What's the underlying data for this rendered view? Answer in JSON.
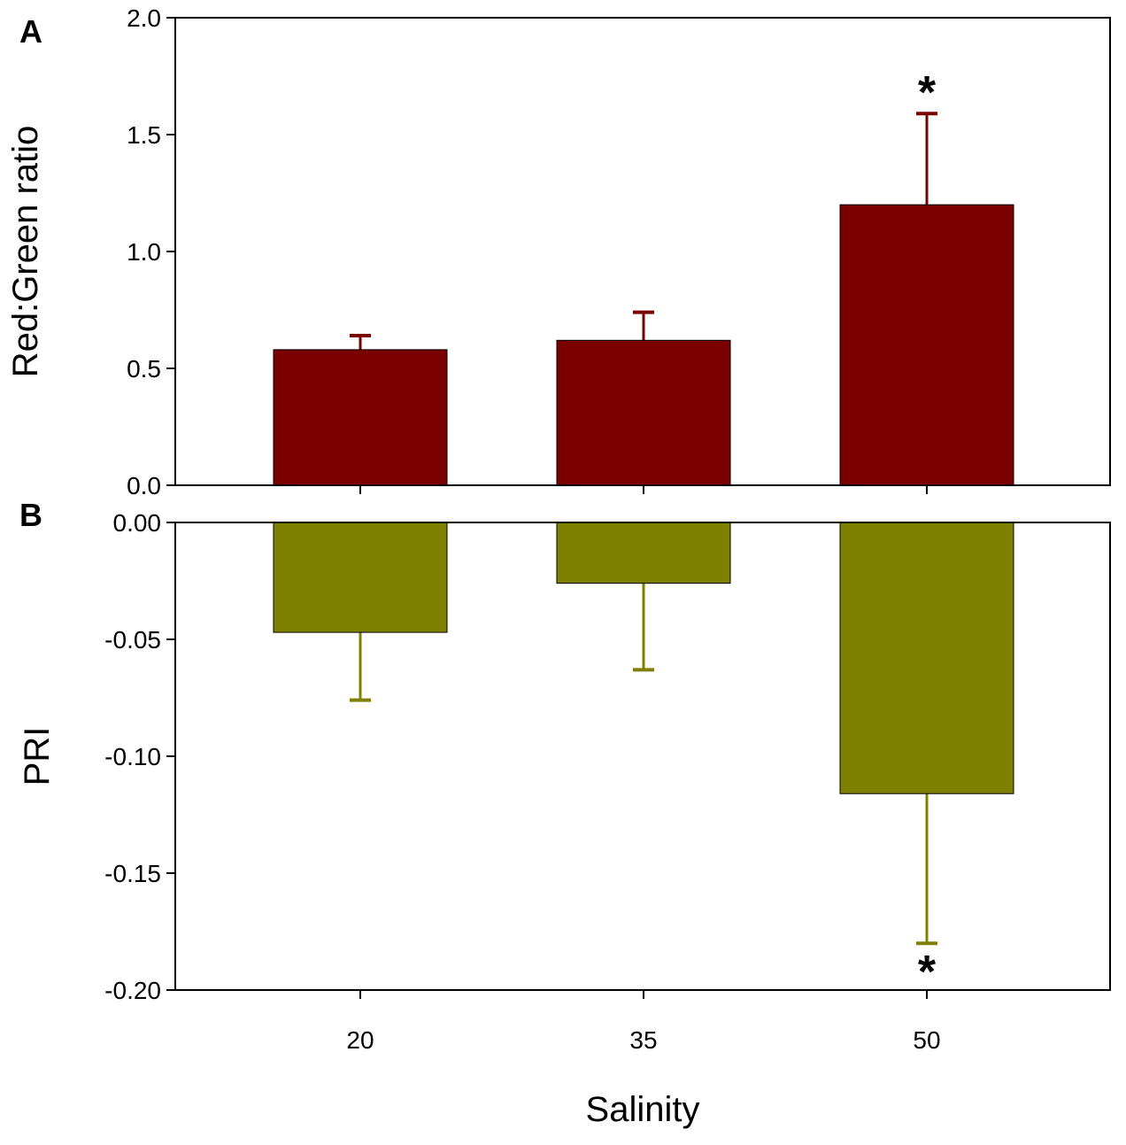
{
  "chart_data": [
    {
      "panel": "A",
      "type": "bar",
      "categories": [
        "20",
        "35",
        "50"
      ],
      "values": [
        0.58,
        0.62,
        1.2
      ],
      "errors": [
        0.06,
        0.12,
        0.39
      ],
      "error_direction": "up",
      "ylabel": "Red:Green ratio",
      "xlabel": "",
      "ylim": [
        0.0,
        2.0
      ],
      "yticks": [
        0.0,
        0.5,
        1.0,
        1.5,
        2.0
      ],
      "ytick_labels": [
        "0.0",
        "0.5",
        "1.0",
        "1.5",
        "2.0"
      ],
      "color": "#7b0000",
      "significance": [
        "",
        "",
        "*"
      ]
    },
    {
      "panel": "B",
      "type": "bar",
      "categories": [
        "20",
        "35",
        "50"
      ],
      "values": [
        -0.047,
        -0.026,
        -0.116
      ],
      "errors": [
        0.029,
        0.037,
        0.064
      ],
      "error_direction": "down",
      "ylabel": "PRI",
      "xlabel": "Salinity",
      "ylim": [
        -0.2,
        0.0
      ],
      "yticks": [
        0.0,
        -0.05,
        -0.1,
        -0.15,
        -0.2
      ],
      "ytick_labels": [
        "0.00",
        "-0.05",
        "-0.10",
        "-0.15",
        "-0.20"
      ],
      "xtick_labels": [
        "20",
        "35",
        "50"
      ],
      "color": "#808000",
      "significance": [
        "",
        "",
        "*"
      ]
    }
  ]
}
